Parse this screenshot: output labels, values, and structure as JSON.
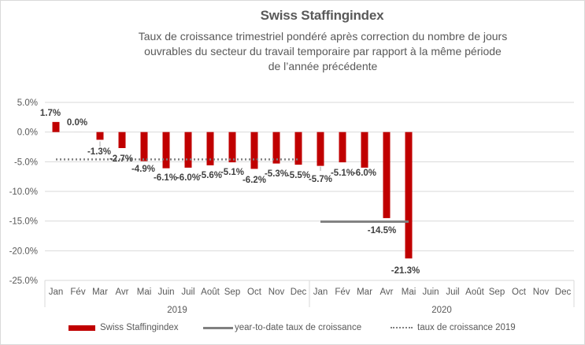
{
  "chart_data": {
    "type": "bar",
    "title": "Swiss Staffingindex",
    "subtitle": [
      "Taux de croissance trimestriel pondéré après correction du nombre de jours",
      "ouvrables du secteur du travail temporaire par rapport à la même période",
      "de l’année précédente"
    ],
    "xlabel": "",
    "ylabel": "",
    "ylim": [
      -25,
      5
    ],
    "yticks": [
      "5.0%",
      "0.0%",
      "-5.0%",
      "-10.0%",
      "-15.0%",
      "-20.0%",
      "-25.0%"
    ],
    "ytick_values": [
      5,
      0,
      -5,
      -10,
      -15,
      -20,
      -25
    ],
    "grid": true,
    "years": [
      "2019",
      "2020"
    ],
    "categories": [
      "Jan",
      "Fév",
      "Mar",
      "Avr",
      "Mai",
      "Juin",
      "Juil",
      "Août",
      "Sep",
      "Oct",
      "Nov",
      "Dec",
      "Jan",
      "Fév",
      "Mar",
      "Avr",
      "Mai",
      "Juin",
      "Juil",
      "Août",
      "Sep",
      "Oct",
      "Nov",
      "Dec"
    ],
    "series": [
      {
        "name": "Swiss Staffingindex",
        "type": "bar",
        "color": "#c00000",
        "values": [
          1.7,
          0.0,
          -1.3,
          -2.7,
          -4.9,
          -6.1,
          -6.0,
          -5.6,
          -5.1,
          -6.2,
          -5.3,
          -5.5,
          -5.7,
          -5.1,
          -6.0,
          -14.5,
          -21.3,
          null,
          null,
          null,
          null,
          null,
          null,
          null
        ],
        "labels": [
          "1.7%",
          "0.0%",
          "-1.3%",
          "-2.7%",
          "-4.9%",
          "-6.1%",
          "-6.0%",
          "-5.6%",
          "-5.1%",
          "-6.2%",
          "-5.3%",
          "-5.5%",
          "-5.7%",
          "-5.1%",
          "-6.0%",
          "-14.5%",
          "-21.3%",
          "",
          "",
          "",
          "",
          "",
          "",
          ""
        ]
      },
      {
        "name": "year-to-date taux de croissance",
        "type": "line",
        "color": "#808080",
        "value": -15.1,
        "from_index": 12,
        "to_index": 16
      },
      {
        "name": "taux de croissance 2019",
        "type": "dotted-line",
        "color": "#808080",
        "value": -4.6,
        "from_index": 0,
        "to_index": 11
      }
    ],
    "legend_position": "bottom"
  }
}
